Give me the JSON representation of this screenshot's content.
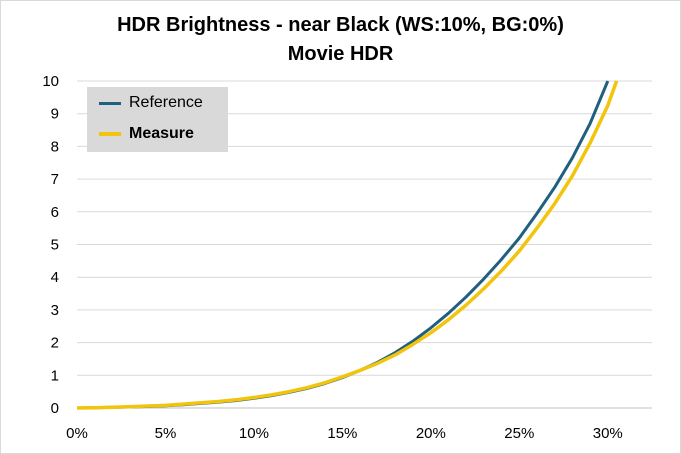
{
  "chart_data": {
    "type": "line",
    "title": "HDR Brightness - near Black (WS:10%, BG:0%)",
    "subtitle": "Movie HDR",
    "xlabel": "",
    "ylabel": "",
    "xlim": [
      0,
      0.325
    ],
    "ylim": [
      0,
      10
    ],
    "x_tick_labels": [
      "0%",
      "5%",
      "10%",
      "15%",
      "20%",
      "25%",
      "30%"
    ],
    "x_ticks": [
      0,
      0.05,
      0.1,
      0.15,
      0.2,
      0.25,
      0.3
    ],
    "y_ticks": [
      0,
      1,
      2,
      3,
      4,
      5,
      6,
      7,
      8,
      9,
      10
    ],
    "grid": "horizontal",
    "legend_position": "top-left",
    "series": [
      {
        "name": "Reference",
        "color": "#1f5f7f",
        "bold": false,
        "points": [
          [
            0,
            0
          ],
          [
            0.01,
            0.01
          ],
          [
            0.02,
            0.02
          ],
          [
            0.03,
            0.03
          ],
          [
            0.04,
            0.05
          ],
          [
            0.05,
            0.07
          ],
          [
            0.06,
            0.1
          ],
          [
            0.07,
            0.14
          ],
          [
            0.08,
            0.18
          ],
          [
            0.09,
            0.23
          ],
          [
            0.1,
            0.3
          ],
          [
            0.11,
            0.38
          ],
          [
            0.12,
            0.48
          ],
          [
            0.13,
            0.6
          ],
          [
            0.14,
            0.75
          ],
          [
            0.15,
            0.93
          ],
          [
            0.16,
            1.15
          ],
          [
            0.17,
            1.4
          ],
          [
            0.18,
            1.7
          ],
          [
            0.19,
            2.05
          ],
          [
            0.2,
            2.45
          ],
          [
            0.21,
            2.9
          ],
          [
            0.22,
            3.4
          ],
          [
            0.23,
            3.95
          ],
          [
            0.24,
            4.55
          ],
          [
            0.25,
            5.2
          ],
          [
            0.26,
            5.95
          ],
          [
            0.27,
            6.75
          ],
          [
            0.28,
            7.65
          ],
          [
            0.29,
            8.7
          ],
          [
            0.3,
            10.0
          ]
        ]
      },
      {
        "name": "Measure",
        "color": "#f2c40c",
        "bold": true,
        "points": [
          [
            0,
            0
          ],
          [
            0.01,
            0.01
          ],
          [
            0.02,
            0.02
          ],
          [
            0.03,
            0.04
          ],
          [
            0.04,
            0.06
          ],
          [
            0.05,
            0.08
          ],
          [
            0.06,
            0.12
          ],
          [
            0.07,
            0.16
          ],
          [
            0.08,
            0.2
          ],
          [
            0.09,
            0.25
          ],
          [
            0.1,
            0.32
          ],
          [
            0.11,
            0.4
          ],
          [
            0.12,
            0.5
          ],
          [
            0.13,
            0.62
          ],
          [
            0.14,
            0.77
          ],
          [
            0.15,
            0.95
          ],
          [
            0.16,
            1.15
          ],
          [
            0.17,
            1.37
          ],
          [
            0.18,
            1.63
          ],
          [
            0.19,
            1.95
          ],
          [
            0.2,
            2.3
          ],
          [
            0.21,
            2.7
          ],
          [
            0.22,
            3.15
          ],
          [
            0.23,
            3.65
          ],
          [
            0.24,
            4.2
          ],
          [
            0.25,
            4.8
          ],
          [
            0.26,
            5.5
          ],
          [
            0.27,
            6.25
          ],
          [
            0.28,
            7.1
          ],
          [
            0.29,
            8.1
          ],
          [
            0.3,
            9.25
          ],
          [
            0.305,
            10.0
          ]
        ]
      }
    ]
  }
}
